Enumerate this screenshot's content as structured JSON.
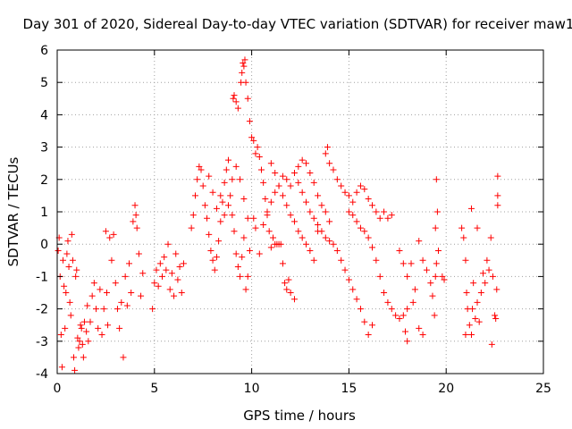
{
  "chart_data": {
    "type": "scatter",
    "title": "Day 301 of 2020, Sidereal Day-to-day VTEC variation (SDTVAR) for receiver maw1",
    "xlabel": "GPS time / hours",
    "ylabel": "SDTVAR / TECUs",
    "xlim": [
      0,
      25
    ],
    "ylim": [
      -4,
      6
    ],
    "x_ticks": [
      "0",
      "5",
      "10",
      "15",
      "20",
      "25"
    ],
    "y_ticks": [
      "-4",
      "-3",
      "-2",
      "-1",
      "0",
      "1",
      "2",
      "3",
      "4",
      "5",
      "6"
    ],
    "grid": true,
    "marker": "+",
    "marker_color": "#ff0000",
    "series": [
      {
        "name": "SDTVAR",
        "points": [
          [
            0.05,
            -0.2
          ],
          [
            0.1,
            0.2
          ],
          [
            0.15,
            -1.0
          ],
          [
            0.2,
            -2.8
          ],
          [
            0.25,
            -3.8
          ],
          [
            0.3,
            -0.5
          ],
          [
            0.35,
            -1.3
          ],
          [
            0.4,
            -2.6
          ],
          [
            0.45,
            -1.5
          ],
          [
            0.5,
            -0.3
          ],
          [
            0.55,
            0.1
          ],
          [
            0.6,
            -0.7
          ],
          [
            0.65,
            -1.8
          ],
          [
            0.7,
            -2.2
          ],
          [
            0.75,
            0.3
          ],
          [
            0.8,
            -0.5
          ],
          [
            0.85,
            -3.5
          ],
          [
            0.9,
            -3.9
          ],
          [
            0.95,
            -1.0
          ],
          [
            1.0,
            -0.8
          ],
          [
            1.05,
            -2.9
          ],
          [
            1.1,
            -3.2
          ],
          [
            1.15,
            -3.0
          ],
          [
            1.2,
            -2.5
          ],
          [
            1.25,
            -2.6
          ],
          [
            1.3,
            -3.1
          ],
          [
            1.35,
            -3.5
          ],
          [
            1.4,
            -2.4
          ],
          [
            1.5,
            -2.7
          ],
          [
            1.55,
            -1.9
          ],
          [
            1.6,
            -3.0
          ],
          [
            1.7,
            -2.4
          ],
          [
            1.8,
            -1.6
          ],
          [
            1.9,
            -1.2
          ],
          [
            2.0,
            -2.0
          ],
          [
            2.1,
            -2.6
          ],
          [
            2.2,
            -1.4
          ],
          [
            2.3,
            -2.8
          ],
          [
            2.4,
            -2.0
          ],
          [
            2.5,
            0.4
          ],
          [
            2.55,
            -1.5
          ],
          [
            2.6,
            -2.5
          ],
          [
            2.7,
            0.2
          ],
          [
            2.8,
            -0.5
          ],
          [
            2.9,
            0.3
          ],
          [
            3.0,
            -1.2
          ],
          [
            3.1,
            -2.0
          ],
          [
            3.2,
            -2.6
          ],
          [
            3.3,
            -1.8
          ],
          [
            3.4,
            -3.5
          ],
          [
            3.5,
            -1.0
          ],
          [
            3.6,
            -1.9
          ],
          [
            3.7,
            -0.6
          ],
          [
            3.8,
            -1.5
          ],
          [
            3.9,
            0.7
          ],
          [
            4.0,
            1.2
          ],
          [
            4.05,
            0.9
          ],
          [
            4.1,
            0.5
          ],
          [
            4.2,
            -0.3
          ],
          [
            4.3,
            -1.6
          ],
          [
            4.4,
            -0.9
          ],
          [
            4.9,
            -2.0
          ],
          [
            5.0,
            -1.2
          ],
          [
            5.1,
            -0.8
          ],
          [
            5.2,
            -1.3
          ],
          [
            5.3,
            -0.6
          ],
          [
            5.4,
            -1.0
          ],
          [
            5.5,
            -0.4
          ],
          [
            5.6,
            -0.8
          ],
          [
            5.7,
            0.0
          ],
          [
            5.8,
            -1.4
          ],
          [
            5.9,
            -0.9
          ],
          [
            6.0,
            -1.6
          ],
          [
            6.1,
            -0.3
          ],
          [
            6.2,
            -1.1
          ],
          [
            6.3,
            -0.7
          ],
          [
            6.4,
            -1.5
          ],
          [
            6.5,
            -0.6
          ],
          [
            6.9,
            0.5
          ],
          [
            7.0,
            0.9
          ],
          [
            7.1,
            1.5
          ],
          [
            7.2,
            2.0
          ],
          [
            7.3,
            2.4
          ],
          [
            7.4,
            2.3
          ],
          [
            7.5,
            1.8
          ],
          [
            7.6,
            1.2
          ],
          [
            7.7,
            0.8
          ],
          [
            7.8,
            0.3
          ],
          [
            7.9,
            -0.2
          ],
          [
            8.0,
            -0.5
          ],
          [
            8.1,
            -0.8
          ],
          [
            8.2,
            -0.4
          ],
          [
            8.3,
            0.1
          ],
          [
            8.4,
            0.7
          ],
          [
            8.5,
            1.3
          ],
          [
            8.6,
            1.9
          ],
          [
            8.7,
            2.3
          ],
          [
            8.8,
            2.6
          ],
          [
            8.9,
            1.5
          ],
          [
            9.0,
            0.9
          ],
          [
            9.1,
            0.4
          ],
          [
            9.2,
            -0.3
          ],
          [
            9.3,
            -0.7
          ],
          [
            9.4,
            -1.0
          ],
          [
            9.5,
            -0.4
          ],
          [
            9.6,
            0.2
          ],
          [
            9.7,
            -1.4
          ],
          [
            9.8,
            -1.0
          ],
          [
            9.9,
            -0.2
          ],
          [
            7.8,
            2.1
          ],
          [
            8.0,
            1.6
          ],
          [
            8.2,
            1.1
          ],
          [
            8.4,
            1.5
          ],
          [
            8.6,
            0.9
          ],
          [
            8.8,
            1.2
          ],
          [
            9.0,
            2.0
          ],
          [
            9.2,
            2.4
          ],
          [
            9.4,
            2.0
          ],
          [
            9.6,
            1.4
          ],
          [
            9.8,
            0.8
          ],
          [
            9.05,
            4.5
          ],
          [
            9.1,
            4.6
          ],
          [
            9.2,
            4.4
          ],
          [
            9.3,
            4.2
          ],
          [
            9.45,
            5.0
          ],
          [
            9.5,
            5.3
          ],
          [
            9.55,
            5.6
          ],
          [
            9.6,
            5.5
          ],
          [
            9.65,
            5.7
          ],
          [
            9.7,
            5.0
          ],
          [
            9.8,
            4.5
          ],
          [
            9.9,
            3.8
          ],
          [
            10.0,
            3.3
          ],
          [
            10.1,
            3.2
          ],
          [
            10.2,
            2.8
          ],
          [
            10.3,
            3.0
          ],
          [
            10.4,
            2.7
          ],
          [
            10.5,
            2.3
          ],
          [
            10.6,
            1.9
          ],
          [
            10.7,
            1.4
          ],
          [
            10.8,
            0.9
          ],
          [
            10.9,
            0.4
          ],
          [
            11.0,
            -0.1
          ],
          [
            11.1,
            0.2
          ],
          [
            11.2,
            0.0
          ],
          [
            11.3,
            0.0
          ],
          [
            11.4,
            0.0
          ],
          [
            11.5,
            0.0
          ],
          [
            11.6,
            -0.6
          ],
          [
            11.7,
            -1.2
          ],
          [
            11.8,
            -1.4
          ],
          [
            11.9,
            -1.1
          ],
          [
            12.0,
            -1.5
          ],
          [
            12.2,
            -1.7
          ],
          [
            10.1,
            0.8
          ],
          [
            10.2,
            0.5
          ],
          [
            10.4,
            -0.3
          ],
          [
            10.6,
            0.6
          ],
          [
            10.8,
            1.0
          ],
          [
            11.0,
            1.3
          ],
          [
            11.2,
            1.6
          ],
          [
            11.4,
            1.8
          ],
          [
            11.6,
            2.1
          ],
          [
            11.8,
            2.0
          ],
          [
            12.0,
            1.8
          ],
          [
            12.2,
            2.2
          ],
          [
            12.4,
            2.4
          ],
          [
            12.6,
            2.6
          ],
          [
            12.8,
            2.5
          ],
          [
            13.0,
            2.2
          ],
          [
            13.2,
            1.9
          ],
          [
            13.4,
            1.5
          ],
          [
            13.6,
            1.2
          ],
          [
            13.8,
            1.0
          ],
          [
            14.0,
            0.7
          ],
          [
            11.0,
            2.5
          ],
          [
            11.2,
            2.2
          ],
          [
            11.4,
            1.8
          ],
          [
            11.6,
            1.5
          ],
          [
            11.8,
            1.2
          ],
          [
            12.0,
            0.9
          ],
          [
            12.2,
            0.7
          ],
          [
            12.4,
            0.4
          ],
          [
            12.6,
            0.2
          ],
          [
            12.8,
            0.0
          ],
          [
            13.0,
            -0.2
          ],
          [
            13.2,
            -0.5
          ],
          [
            13.4,
            0.4
          ],
          [
            12.4,
            1.9
          ],
          [
            12.6,
            1.6
          ],
          [
            12.8,
            1.3
          ],
          [
            13.0,
            1.0
          ],
          [
            13.2,
            0.8
          ],
          [
            13.4,
            0.6
          ],
          [
            13.6,
            0.4
          ],
          [
            13.8,
            0.2
          ],
          [
            14.0,
            0.1
          ],
          [
            14.2,
            0.0
          ],
          [
            14.4,
            -0.2
          ],
          [
            14.6,
            -0.5
          ],
          [
            14.8,
            -0.8
          ],
          [
            15.0,
            -1.1
          ],
          [
            15.2,
            -1.4
          ],
          [
            15.4,
            -1.7
          ],
          [
            15.6,
            -2.0
          ],
          [
            15.8,
            -2.4
          ],
          [
            16.0,
            -2.8
          ],
          [
            16.2,
            -2.5
          ],
          [
            13.8,
            2.8
          ],
          [
            13.9,
            3.0
          ],
          [
            14.0,
            2.5
          ],
          [
            14.2,
            2.3
          ],
          [
            14.4,
            2.0
          ],
          [
            14.6,
            1.8
          ],
          [
            14.8,
            1.6
          ],
          [
            15.0,
            1.5
          ],
          [
            15.2,
            1.3
          ],
          [
            15.4,
            1.6
          ],
          [
            15.6,
            1.8
          ],
          [
            15.8,
            1.7
          ],
          [
            16.0,
            1.4
          ],
          [
            16.2,
            1.2
          ],
          [
            16.4,
            1.0
          ],
          [
            16.6,
            0.8
          ],
          [
            16.8,
            1.0
          ],
          [
            17.0,
            0.8
          ],
          [
            17.2,
            0.9
          ],
          [
            15.0,
            1.0
          ],
          [
            15.2,
            0.9
          ],
          [
            15.4,
            0.7
          ],
          [
            15.6,
            0.5
          ],
          [
            15.8,
            0.4
          ],
          [
            16.0,
            0.2
          ],
          [
            16.2,
            -0.1
          ],
          [
            16.4,
            -0.5
          ],
          [
            16.6,
            -1.0
          ],
          [
            16.8,
            -1.5
          ],
          [
            17.0,
            -1.8
          ],
          [
            17.2,
            -2.0
          ],
          [
            17.4,
            -2.2
          ],
          [
            17.6,
            -2.3
          ],
          [
            17.8,
            -2.2
          ],
          [
            18.0,
            -2.0
          ],
          [
            17.6,
            -0.2
          ],
          [
            17.8,
            -0.6
          ],
          [
            18.0,
            -1.0
          ],
          [
            18.2,
            -0.6
          ],
          [
            18.4,
            -1.4
          ],
          [
            18.6,
            -2.6
          ],
          [
            18.8,
            -2.8
          ],
          [
            18.0,
            -3.0
          ],
          [
            17.9,
            -2.7
          ],
          [
            18.3,
            -1.8
          ],
          [
            18.6,
            0.1
          ],
          [
            18.8,
            -0.5
          ],
          [
            19.0,
            -0.8
          ],
          [
            19.2,
            -1.2
          ],
          [
            19.3,
            -1.6
          ],
          [
            19.4,
            -2.2
          ],
          [
            19.45,
            -1.0
          ],
          [
            19.5,
            -0.6
          ],
          [
            19.6,
            -0.2
          ],
          [
            19.5,
            2.0
          ],
          [
            19.55,
            1.0
          ],
          [
            19.45,
            0.5
          ],
          [
            19.8,
            -1.0
          ],
          [
            19.9,
            -1.1
          ],
          [
            20.8,
            0.5
          ],
          [
            20.9,
            0.2
          ],
          [
            21.0,
            -0.5
          ],
          [
            21.05,
            -1.5
          ],
          [
            21.1,
            -2.0
          ],
          [
            21.2,
            -2.5
          ],
          [
            21.3,
            -2.8
          ],
          [
            21.35,
            -2.0
          ],
          [
            21.4,
            -1.2
          ],
          [
            21.5,
            -2.3
          ],
          [
            21.6,
            -1.8
          ],
          [
            21.7,
            -2.4
          ],
          [
            21.8,
            -1.5
          ],
          [
            21.9,
            -0.9
          ],
          [
            22.0,
            -1.2
          ],
          [
            22.1,
            -0.5
          ],
          [
            22.2,
            -0.8
          ],
          [
            22.3,
            0.2
          ],
          [
            22.35,
            -3.1
          ],
          [
            22.4,
            -1.0
          ],
          [
            22.5,
            -2.2
          ],
          [
            22.6,
            -1.4
          ],
          [
            21.3,
            1.1
          ],
          [
            21.6,
            0.5
          ],
          [
            21.0,
            -2.8
          ],
          [
            22.65,
            1.5
          ],
          [
            22.65,
            1.2
          ],
          [
            22.65,
            2.1
          ],
          [
            22.55,
            -2.3
          ]
        ]
      }
    ]
  }
}
